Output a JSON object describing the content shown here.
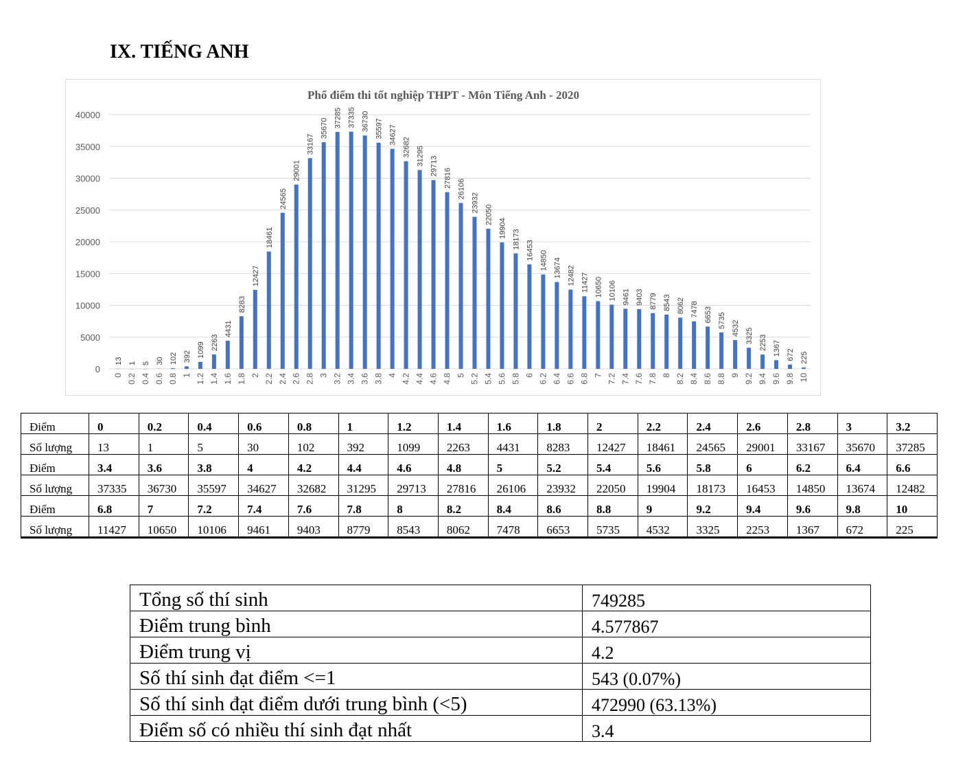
{
  "section_title": "IX. TIẾNG ANH",
  "chart_data": {
    "type": "bar",
    "title": "Phổ điểm thi tốt nghiệp THPT - Môn Tiếng Anh - 2020",
    "xlabel": "",
    "ylabel": "",
    "ylim": [
      0,
      40000
    ],
    "yticks": [
      0,
      5000,
      10000,
      15000,
      20000,
      25000,
      30000,
      35000,
      40000
    ],
    "grid": true,
    "bar_color": "#4472c4",
    "x": [
      "0",
      "0.2",
      "0.4",
      "0.6",
      "0.8",
      "1",
      "1.2",
      "1.4",
      "1.6",
      "1.8",
      "2",
      "2.2",
      "2.4",
      "2.6",
      "2.8",
      "3",
      "3.2",
      "3.4",
      "3.6",
      "3.8",
      "4",
      "4.2",
      "4.4",
      "4.6",
      "4.8",
      "5",
      "5.2",
      "5.4",
      "5.6",
      "5.8",
      "6",
      "6.2",
      "6.4",
      "6.6",
      "6.8",
      "7",
      "7.2",
      "7.4",
      "7.6",
      "7.8",
      "8",
      "8.2",
      "8.4",
      "8.6",
      "8.8",
      "9",
      "9.2",
      "9.4",
      "9.6",
      "9.8",
      "10"
    ],
    "values": [
      13,
      1,
      5,
      30,
      102,
      392,
      1099,
      2263,
      4431,
      8283,
      12427,
      18461,
      24565,
      29001,
      33167,
      35670,
      37285,
      37335,
      36730,
      35597,
      34627,
      32682,
      31295,
      29713,
      27816,
      26106,
      23932,
      22050,
      19904,
      18173,
      16453,
      14850,
      13674,
      12482,
      11427,
      10650,
      10106,
      9461,
      9403,
      8779,
      8543,
      8062,
      7478,
      6653,
      5735,
      4532,
      3325,
      2253,
      1367,
      672,
      225
    ]
  },
  "score_table": {
    "score_label": "Điểm",
    "count_label": "Số lượng"
  },
  "summary": [
    {
      "label": "Tổng số thí sinh",
      "value": "749285"
    },
    {
      "label": "Điểm trung bình",
      "value": "4.577867"
    },
    {
      "label": "Điểm trung vị",
      "value": "4.2"
    },
    {
      "label": "Số thí sinh đạt điểm <=1",
      "value": "543 (0.07%)"
    },
    {
      "label": "Số thí sinh đạt điểm dưới trung bình (<5)",
      "value": "472990 (63.13%)"
    },
    {
      "label": "Điểm số có nhiều thí sinh đạt nhất",
      "value": "3.4"
    }
  ]
}
